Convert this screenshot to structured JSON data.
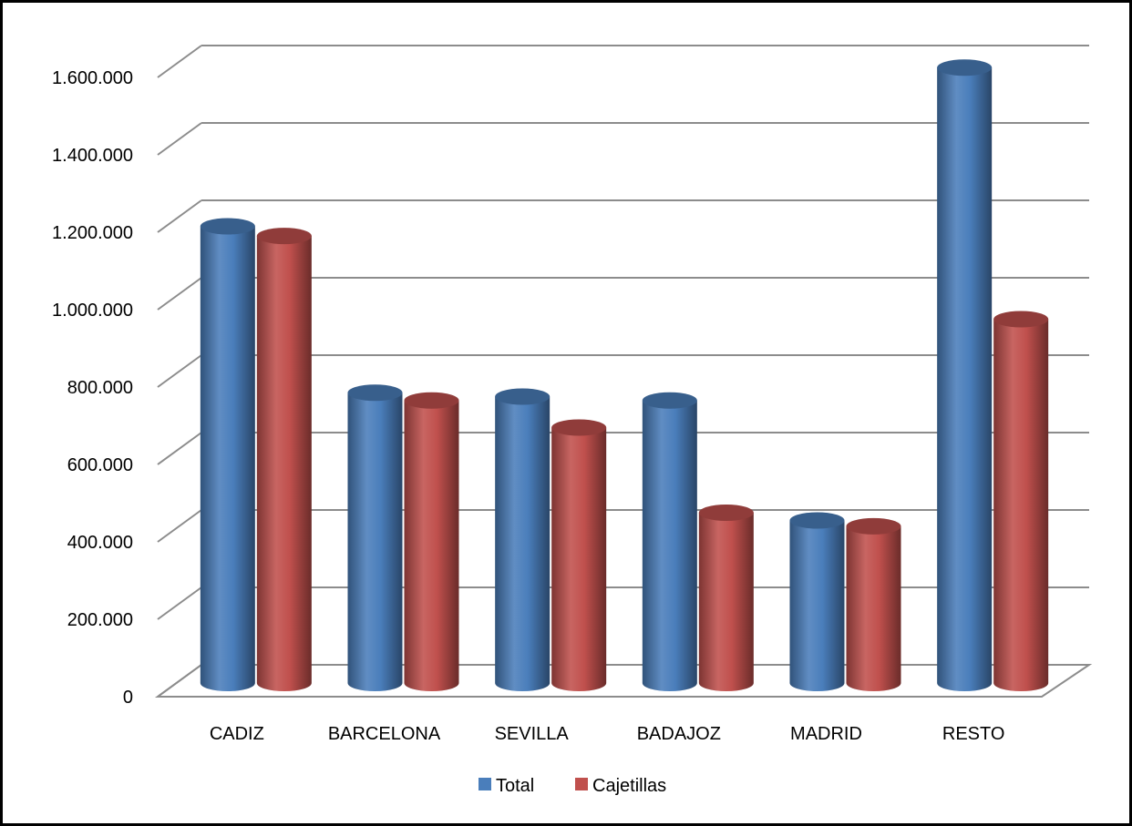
{
  "chart_data": {
    "type": "bar",
    "style": "3d-cylinder",
    "categories": [
      "CADIZ",
      "BARCELONA",
      "SEVILLA",
      "BADAJOZ",
      "MADRID",
      "RESTO"
    ],
    "series": [
      {
        "name": "Total",
        "color": "#4a7ebb",
        "values": [
          1180000,
          750000,
          740000,
          730000,
          420000,
          1590000
        ]
      },
      {
        "name": "Cajetillas",
        "color": "#c0504d",
        "values": [
          1155000,
          730000,
          660000,
          440000,
          405000,
          940000
        ]
      }
    ],
    "y_ticks": [
      "0",
      "200.000",
      "400.000",
      "600.000",
      "800.000",
      "1.000.000",
      "1.200.000",
      "1.400.000",
      "1.600.000"
    ],
    "ylim": [
      0,
      1600000
    ],
    "y_step": 200000,
    "grid": true,
    "legend_position": "bottom"
  }
}
